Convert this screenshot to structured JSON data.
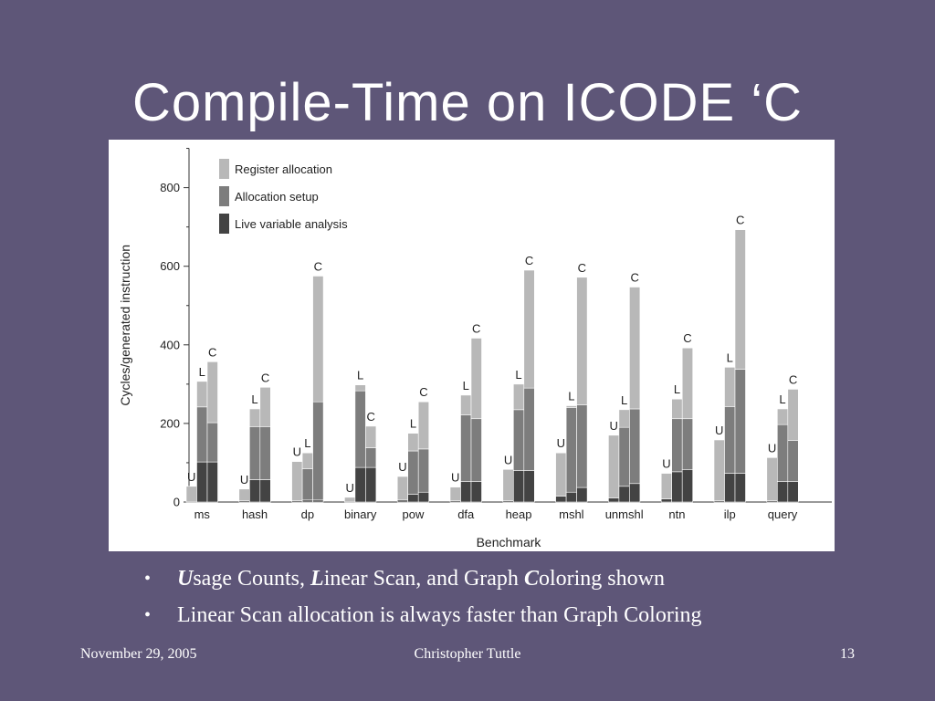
{
  "slide": {
    "title": "Compile-Time on ICODE ‘C",
    "bullets": [
      {
        "parts": [
          {
            "b": "U"
          },
          {
            "t": "sage Counts, "
          },
          {
            "b": "L"
          },
          {
            "t": "inear Scan, and Graph "
          },
          {
            "b": "C"
          },
          {
            "t": "oloring shown"
          }
        ]
      },
      {
        "parts": [
          {
            "t": "Linear Scan allocation is always faster than Graph Coloring"
          }
        ]
      }
    ],
    "footer": {
      "date": "November 29, 2005",
      "author": "Christopher Tuttle",
      "page": "13"
    }
  },
  "colors": {
    "background": "#5e5678",
    "register_allocation": "#b8b8b8",
    "allocation_setup": "#7d7d7d",
    "live_variable_analysis": "#434343"
  },
  "chart_data": {
    "type": "bar",
    "stacked": true,
    "xlabel": "Benchmark",
    "ylabel": "Cycles/generated instruction",
    "ylim": [
      0,
      900
    ],
    "yticks": [
      0,
      200,
      400,
      600,
      800
    ],
    "legend_position": "top-left",
    "categories": [
      "ms",
      "hash",
      "dp",
      "binary",
      "pow",
      "dfa",
      "heap",
      "mshl",
      "unmshl",
      "ntn",
      "ilp",
      "query"
    ],
    "allocators": [
      "U",
      "L",
      "C"
    ],
    "series": [
      {
        "name": "Register allocation",
        "values": {
          "U": [
            40,
            30,
            100,
            12,
            60,
            35,
            80,
            110,
            160,
            65,
            155,
            110
          ],
          "L": [
            65,
            45,
            40,
            15,
            45,
            50,
            65,
            5,
            45,
            50,
            100,
            40
          ],
          "C": [
            155,
            100,
            320,
            55,
            120,
            205,
            300,
            325,
            310,
            180,
            355,
            130
          ]
        }
      },
      {
        "name": "Allocation setup",
        "values": {
          "U": [
            0,
            0,
            0,
            0,
            0,
            0,
            0,
            0,
            0,
            0,
            0,
            0
          ],
          "L": [
            140,
            135,
            80,
            195,
            110,
            170,
            155,
            215,
            150,
            135,
            170,
            145
          ],
          "C": [
            100,
            135,
            250,
            50,
            110,
            160,
            210,
            210,
            190,
            130,
            265,
            105
          ]
        }
      },
      {
        "name": "Live variable analysis",
        "values": {
          "U": [
            0,
            3,
            3,
            0,
            5,
            3,
            3,
            15,
            10,
            8,
            3,
            3
          ],
          "L": [
            102,
            57,
            5,
            88,
            20,
            52,
            80,
            25,
            40,
            77,
            73,
            52
          ],
          "C": [
            102,
            57,
            5,
            88,
            25,
            52,
            80,
            37,
            47,
            82,
            73,
            52
          ]
        }
      }
    ]
  }
}
